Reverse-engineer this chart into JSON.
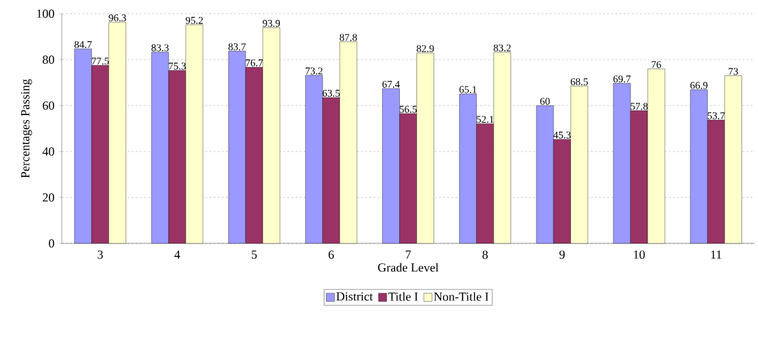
{
  "chart_data": {
    "type": "bar",
    "xlabel": "Grade Level",
    "ylabel": "Percentages Passing",
    "categories": [
      "3",
      "4",
      "5",
      "6",
      "7",
      "8",
      "9",
      "10",
      "11"
    ],
    "series": [
      {
        "name": "District",
        "color": "#9999ff",
        "values": [
          84.7,
          83.3,
          83.7,
          73.2,
          67.4,
          65.1,
          60,
          69.7,
          66.9
        ]
      },
      {
        "name": "Title I",
        "color": "#993366",
        "values": [
          77.5,
          75.3,
          76.7,
          63.5,
          56.5,
          52.1,
          45.3,
          57.8,
          53.7
        ]
      },
      {
        "name": "Non-Title I",
        "color": "#ffffcc",
        "values": [
          96.3,
          95.2,
          93.9,
          87.8,
          82.9,
          83.2,
          68.5,
          76,
          73
        ]
      }
    ],
    "ylim": [
      0,
      100
    ],
    "yticks": [
      0,
      20,
      40,
      60,
      80,
      100
    ],
    "grid": "y",
    "legend": "bottom",
    "data_labels": true
  }
}
